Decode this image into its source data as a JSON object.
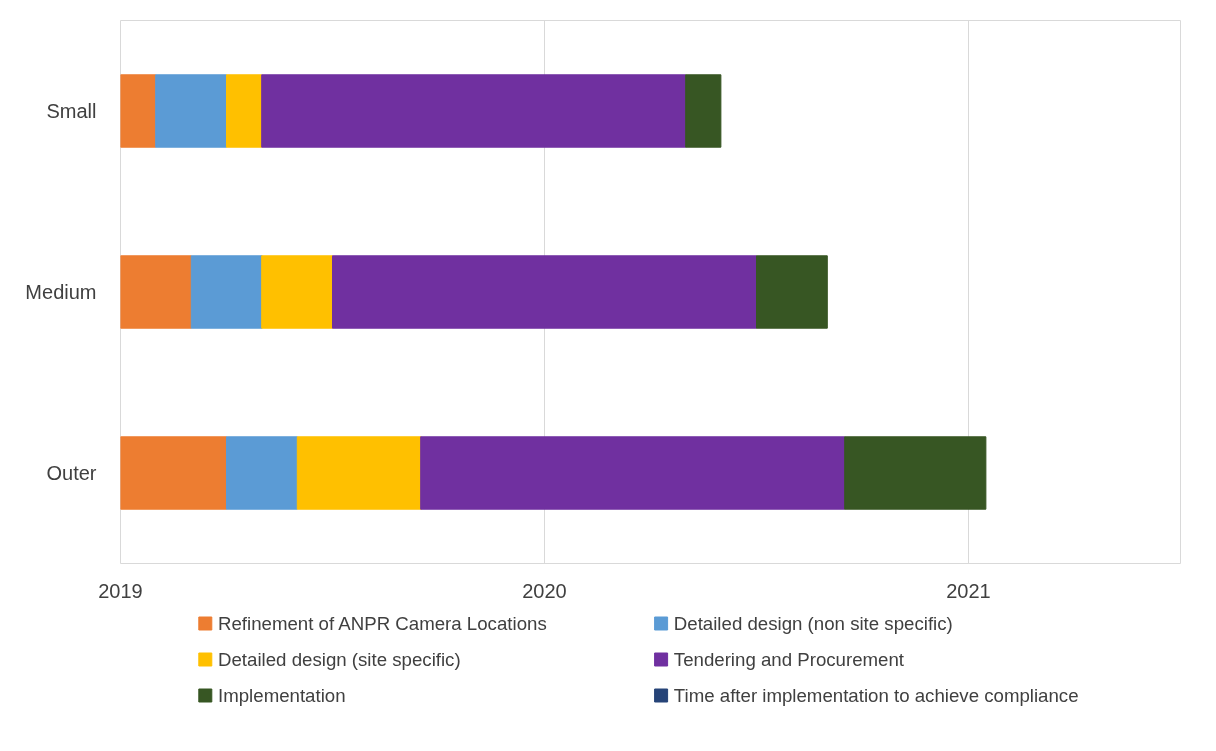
{
  "chart_data": {
    "type": "bar",
    "orientation": "horizontal",
    "categories": [
      "Small",
      "Medium",
      "Outer"
    ],
    "xlim": [
      2019,
      2021.5
    ],
    "xticks": [
      2019,
      2020,
      2021
    ],
    "grid": "x",
    "legend": "bottom",
    "series": [
      {
        "name": "Refinement of ANPR Camera Locations",
        "color": "#ed7d31",
        "base": [
          2019,
          2019,
          2019
        ],
        "values": [
          0.083,
          0.167,
          0.25
        ]
      },
      {
        "name": "Detailed design (non site specific)",
        "color": "#5b9bd5",
        "base": [
          2019.083,
          2019.167,
          2019.25
        ],
        "values": [
          0.167,
          0.167,
          0.167
        ]
      },
      {
        "name": "Detailed design (site specific)",
        "color": "#ffc000",
        "base": [
          2019.25,
          2019.333,
          2019.417
        ],
        "values": [
          0.083,
          0.167,
          0.292
        ]
      },
      {
        "name": "Tendering and Procurement",
        "color": "#7030a0",
        "base": [
          2019.333,
          2019.5,
          2019.708
        ],
        "values": [
          1.0,
          1.0,
          1.0
        ]
      },
      {
        "name": "Implementation",
        "color": "#375623",
        "base": [
          2020.333,
          2020.5,
          2020.708
        ],
        "values": [
          0.083,
          0.167,
          0.333
        ]
      },
      {
        "name": "Time after implementation to achieve compliance",
        "color": "#264478",
        "values": [
          null,
          null,
          null
        ]
      }
    ]
  }
}
